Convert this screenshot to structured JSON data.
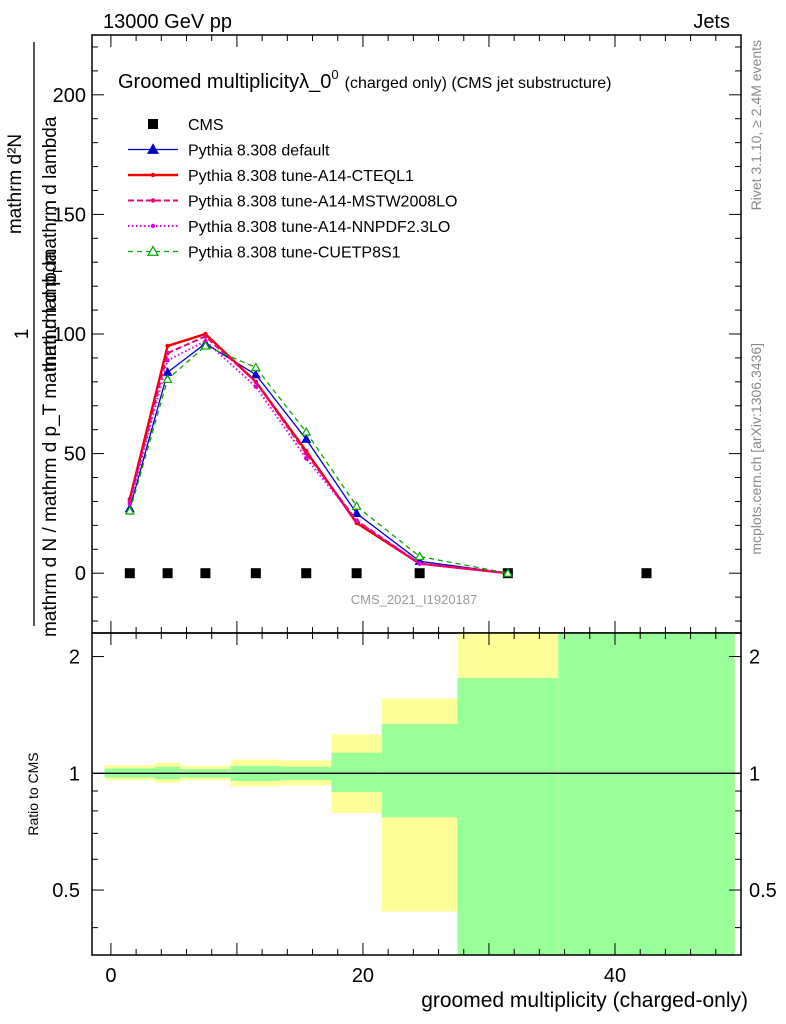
{
  "header": {
    "left": "13000 GeV pp",
    "right": "Jets"
  },
  "side_labels": {
    "rivet": "Rivet 3.1.10, ≥ 2.4M events",
    "mcplots": "mcplots.cern.ch [arXiv:1306.3436]"
  },
  "watermark": "CMS_2021_I1920187",
  "colors": {
    "cms": "#000000",
    "default": "#0000cc",
    "cteql1": "#ee0000",
    "mstw": "#ee0077",
    "nnpdf": "#dd00dd",
    "cuetp8s1": "#00aa00",
    "band_yellow": "#ffff99",
    "band_green": "#99ff99"
  },
  "chart_data": [
    {
      "type": "line",
      "title": "Groomed multiplicityλ_0",
      "title_sup": "0",
      "title_suffix": "(charged only) (CMS jet substructure)",
      "ylabel": "mathrm d N / mathrm d p_T mathrm d lambda",
      "ylabel_full": "1/mathrm dN/mathrm d p_T mathrm d lambda · mathrm d²N/mathrm d p_T mathrm d p mathrm d lambda",
      "ylabel_num": "mathrm d²N",
      "ylabel_den_top": "mathrm d p",
      "ylabel_den_sub1": "T",
      "ylabel_den_mid": "mathrm d p",
      "ylabel_den_sub2": "T",
      "ylabel_den_end": "mathrm d lambda",
      "ylabel_frac_num": "1",
      "xlim": [
        -1.5,
        50
      ],
      "ylim": [
        -25,
        225
      ],
      "yticks": [
        0,
        50,
        100,
        150,
        200
      ],
      "legend_position": "top-left",
      "series": [
        {
          "name": "CMS",
          "key": "cms",
          "style": "square",
          "x": [
            1.5,
            4.5,
            7.5,
            11.5,
            15.5,
            19.5,
            24.5,
            31.5,
            42.5
          ],
          "y": [
            0,
            0,
            0,
            0,
            0,
            0,
            0,
            0,
            0
          ]
        },
        {
          "name": "Pythia 8.308 default",
          "key": "default",
          "style": "triangle",
          "x": [
            1.5,
            4.5,
            7.5,
            11.5,
            15.5,
            19.5,
            24.5,
            31.5
          ],
          "y": [
            27,
            84,
            96,
            83,
            56,
            25,
            5,
            0
          ]
        },
        {
          "name": "Pythia 8.308 tune-A14-CTEQL1",
          "key": "cteql1",
          "style": "solid",
          "x": [
            1.5,
            4.5,
            7.5,
            11.5,
            15.5,
            19.5,
            24.5,
            31.5
          ],
          "y": [
            31,
            95,
            100,
            80,
            51,
            21,
            4,
            0
          ]
        },
        {
          "name": "Pythia 8.308 tune-A14-MSTW2008LO",
          "key": "mstw",
          "style": "dashed",
          "x": [
            1.5,
            4.5,
            7.5,
            11.5,
            15.5,
            19.5,
            24.5,
            31.5
          ],
          "y": [
            30,
            92,
            99,
            80,
            50,
            22,
            4,
            0
          ]
        },
        {
          "name": "Pythia 8.308 tune-A14-NNPDF2.3LO",
          "key": "nnpdf",
          "style": "dotted",
          "x": [
            1.5,
            4.5,
            7.5,
            11.5,
            15.5,
            19.5,
            24.5,
            31.5
          ],
          "y": [
            29,
            89,
            97,
            78,
            48,
            22,
            4,
            0
          ]
        },
        {
          "name": "Pythia 8.308 tune-CUETP8S1",
          "key": "cuetp8s1",
          "style": "open-triangle-dashed",
          "x": [
            1.5,
            4.5,
            7.5,
            11.5,
            15.5,
            19.5,
            24.5,
            31.5
          ],
          "y": [
            26,
            81,
            95,
            86,
            59,
            28,
            7,
            0
          ]
        }
      ]
    },
    {
      "type": "area",
      "ylabel": "Ratio to CMS",
      "xlabel": "groomed multiplicity (charged-only)",
      "xlim": [
        -1.5,
        50
      ],
      "ylim": [
        0.34,
        2.3
      ],
      "xticks": [
        0,
        20,
        40
      ],
      "yticks": [
        0.5,
        1,
        2
      ],
      "reference": 1,
      "bins": [
        {
          "x0": -0.5,
          "x1": 3.5,
          "yel_lo": 0.96,
          "yel_hi": 1.05,
          "grn_lo": 0.975,
          "grn_hi": 1.03
        },
        {
          "x0": 3.5,
          "x1": 5.5,
          "yel_lo": 0.945,
          "yel_hi": 1.065,
          "grn_lo": 0.965,
          "grn_hi": 1.04
        },
        {
          "x0": 5.5,
          "x1": 9.5,
          "yel_lo": 0.96,
          "yel_hi": 1.045,
          "grn_lo": 0.975,
          "grn_hi": 1.025
        },
        {
          "x0": 9.5,
          "x1": 13.5,
          "yel_lo": 0.925,
          "yel_hi": 1.085,
          "grn_lo": 0.955,
          "grn_hi": 1.045
        },
        {
          "x0": 13.5,
          "x1": 17.5,
          "yel_lo": 0.93,
          "yel_hi": 1.08,
          "grn_lo": 0.96,
          "grn_hi": 1.04
        },
        {
          "x0": 17.5,
          "x1": 21.5,
          "yel_lo": 0.79,
          "yel_hi": 1.26,
          "grn_lo": 0.895,
          "grn_hi": 1.13
        },
        {
          "x0": 21.5,
          "x1": 27.5,
          "yel_lo": 0.44,
          "yel_hi": 1.56,
          "grn_lo": 0.77,
          "grn_hi": 1.34
        },
        {
          "x0": 27.5,
          "x1": 35.5,
          "yel_lo": 0.34,
          "yel_hi": 2.3,
          "grn_lo": 0.34,
          "grn_hi": 1.76
        },
        {
          "x0": 35.5,
          "x1": 49.5,
          "yel_lo": 0.34,
          "yel_hi": 2.3,
          "grn_lo": 0.34,
          "grn_hi": 2.3
        }
      ]
    }
  ]
}
